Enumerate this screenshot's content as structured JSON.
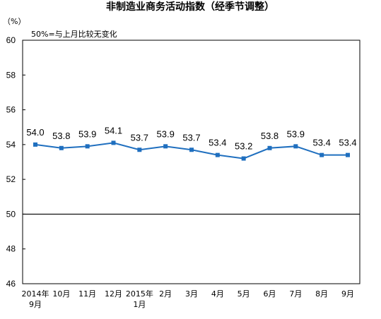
{
  "chart_data": {
    "type": "line",
    "title": "非制造业商务活动指数（经季节调整）",
    "ylabel": "（%）",
    "annotation": "50%=与上月比较无变化",
    "ylim": [
      46,
      60
    ],
    "yticks": [
      "60",
      "58",
      "56",
      "54",
      "52",
      "50",
      "48",
      "46"
    ],
    "reference_line": 50,
    "categories": [
      [
        "2014年",
        "9月"
      ],
      [
        "10月"
      ],
      [
        "11月"
      ],
      [
        "12月"
      ],
      [
        "2015年",
        "1月"
      ],
      [
        "2月"
      ],
      [
        "3月"
      ],
      [
        "4月"
      ],
      [
        "5月"
      ],
      [
        "6月"
      ],
      [
        "7月"
      ],
      [
        "8月"
      ],
      [
        "9月"
      ]
    ],
    "series": [
      {
        "values": [
          54.0,
          53.8,
          53.9,
          54.1,
          53.7,
          53.9,
          53.7,
          53.4,
          53.2,
          53.8,
          53.9,
          53.4,
          53.4
        ],
        "labels": [
          "54.0",
          "53.8",
          "53.9",
          "54.1",
          "53.7",
          "53.9",
          "53.7",
          "53.4",
          "53.2",
          "53.8",
          "53.9",
          "53.4",
          "53.4"
        ],
        "color": "#1f6fbf",
        "marker": "square"
      }
    ],
    "grid": false,
    "colors": {
      "line": "#1f6fbf",
      "axis": "#000000",
      "reference": "#000000"
    }
  }
}
